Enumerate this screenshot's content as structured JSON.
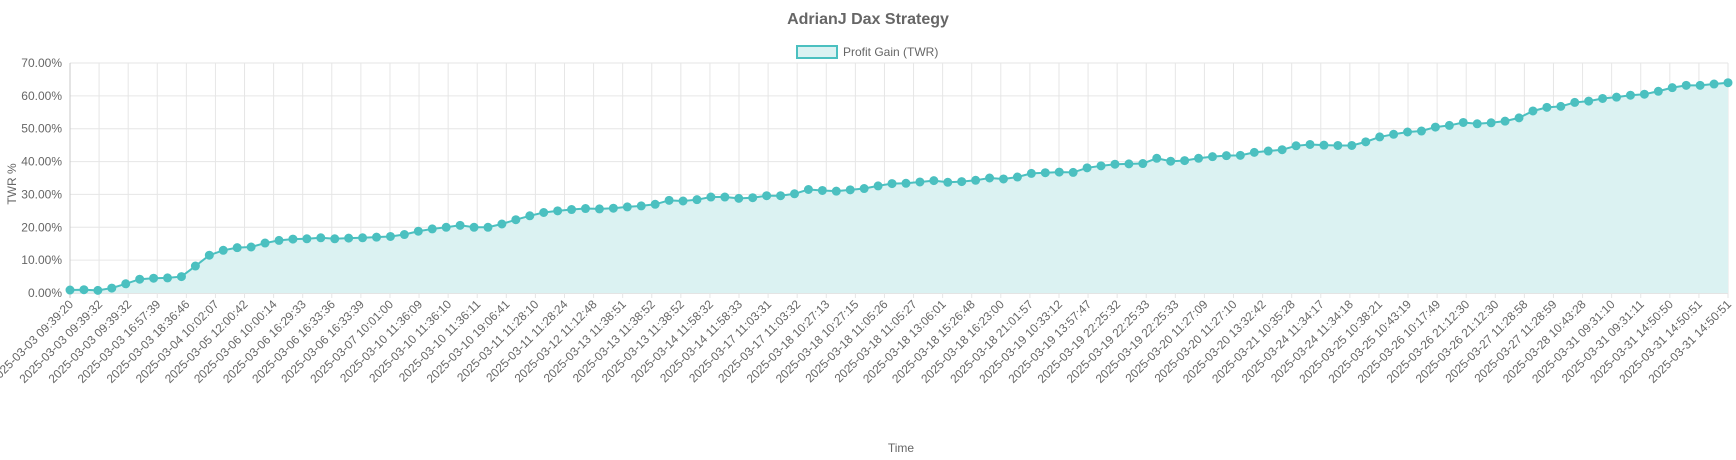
{
  "chart_data": {
    "type": "line",
    "title": "AdrianJ Dax Strategy",
    "xlabel": "Time",
    "ylabel": "TWR %",
    "ylim": [
      0,
      70
    ],
    "y_ticks": [
      "0.00%",
      "10.00%",
      "20.00%",
      "30.00%",
      "40.00%",
      "50.00%",
      "60.00%",
      "70.00%"
    ],
    "x_tick_labels": [
      "2025-03-03 09:39:20",
      "2025-03-03 09:39:32",
      "2025-03-03 09:39:32",
      "2025-03-03 16:57:39",
      "2025-03-03 18:36:46",
      "2025-03-04 10:02:07",
      "2025-03-05 12:00:42",
      "2025-03-06 10:00:14",
      "2025-03-06 16:29:33",
      "2025-03-06 16:33:36",
      "2025-03-06 16:33:39",
      "2025-03-07 10:01:00",
      "2025-03-10 11:36:09",
      "2025-03-10 11:36:10",
      "2025-03-10 11:36:11",
      "2025-03-10 19:06:41",
      "2025-03-11 11:28:10",
      "2025-03-11 11:28:24",
      "2025-03-12 11:12:48",
      "2025-03-13 11:38:51",
      "2025-03-13 11:38:52",
      "2025-03-13 11:38:52",
      "2025-03-14 11:58:32",
      "2025-03-14 11:58:33",
      "2025-03-17 11:03:31",
      "2025-03-17 11:03:32",
      "2025-03-18 10:27:13",
      "2025-03-18 10:27:15",
      "2025-03-18 11:05:26",
      "2025-03-18 11:05:27",
      "2025-03-18 13:06:01",
      "2025-03-18 15:26:48",
      "2025-03-18 16:23:00",
      "2025-03-18 21:01:57",
      "2025-03-19 10:33:12",
      "2025-03-19 13:57:47",
      "2025-03-19 22:25:32",
      "2025-03-19 22:25:33",
      "2025-03-19 22:25:33",
      "2025-03-20 11:27:09",
      "2025-03-20 11:27:10",
      "2025-03-20 13:32:42",
      "2025-03-21 10:35:28",
      "2025-03-24 11:34:17",
      "2025-03-24 11:34:18",
      "2025-03-25 10:38:21",
      "2025-03-25 10:43:19",
      "2025-03-26 10:17:49",
      "2025-03-26 21:12:30",
      "2025-03-26 21:12:30",
      "2025-03-27 11:28:58",
      "2025-03-27 11:28:59",
      "2025-03-28 10:43:28",
      "2025-03-31 09:31:10",
      "2025-03-31 09:31:11",
      "2025-03-31 14:50:50",
      "2025-03-31 14:50:51",
      "2025-03-31 14:50:51"
    ],
    "series": [
      {
        "name": "Profit Gain (TWR)",
        "color": "#4bc0c0",
        "fill": "#dbf2f2",
        "values": [
          0.9,
          1.0,
          0.8,
          1.5,
          2.8,
          4.2,
          4.5,
          4.6,
          5.0,
          8.2,
          11.5,
          13.0,
          13.8,
          14.0,
          15.2,
          16.0,
          16.4,
          16.5,
          16.8,
          16.5,
          16.7,
          16.8,
          17.0,
          17.2,
          17.8,
          18.8,
          19.5,
          20.0,
          20.6,
          20.0,
          20.0,
          21.0,
          22.3,
          23.5,
          24.5,
          25.0,
          25.4,
          25.7,
          25.6,
          25.8,
          26.2,
          26.5,
          27.0,
          28.2,
          28.0,
          28.4,
          29.2,
          29.2,
          28.8,
          29.0,
          29.6,
          29.6,
          30.2,
          31.5,
          31.2,
          31.0,
          31.4,
          31.8,
          32.6,
          33.3,
          33.4,
          33.8,
          34.2,
          33.7,
          33.9,
          34.3,
          35.0,
          34.7,
          35.3,
          36.4,
          36.6,
          36.8,
          36.7,
          38.1,
          38.7,
          39.2,
          39.3,
          39.4,
          41.0,
          40.1,
          40.3,
          41.0,
          41.5,
          41.8,
          41.9,
          42.8,
          43.2,
          43.6,
          44.8,
          45.2,
          45.0,
          44.9,
          44.9,
          46.0,
          47.5,
          48.3,
          49.0,
          49.3,
          50.5,
          51.0,
          51.9,
          51.5,
          51.8,
          52.3,
          53.3,
          55.4,
          56.5,
          56.8,
          58.0,
          58.4,
          59.2,
          59.6,
          60.2,
          60.5,
          61.4,
          62.5,
          63.2,
          63.2,
          63.6,
          64.0
        ]
      }
    ],
    "legend": "top-center",
    "grid": true
  }
}
